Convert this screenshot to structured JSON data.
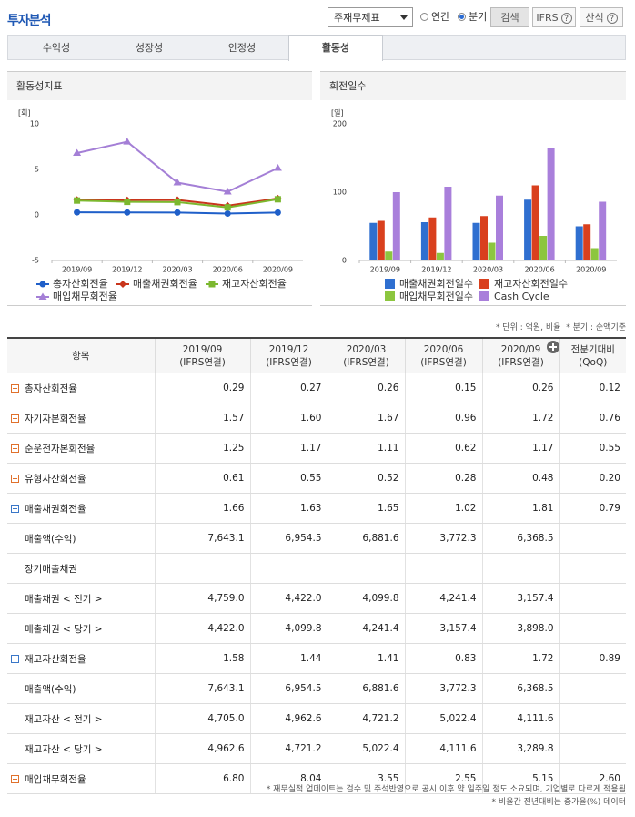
{
  "header": {
    "title": "투자분석",
    "select": "주재무제표",
    "radio_annual": "연간",
    "radio_quarter": "분기",
    "search": "검색",
    "ifrs": "IFRS",
    "formula": "산식"
  },
  "tabs": {
    "items": [
      "수익성",
      "성장성",
      "안정성",
      "활동성"
    ],
    "active": 3
  },
  "chart_data": [
    {
      "type": "line",
      "title": "활동성지표",
      "unit": "[회]",
      "categories": [
        "2019/09",
        "2019/12",
        "2020/03",
        "2020/06",
        "2020/09"
      ],
      "ylim": [
        -5,
        10
      ],
      "yticks": [
        -5,
        0,
        5,
        10
      ],
      "grid": false,
      "series": [
        {
          "name": "총자산회전율",
          "color": "#1f5fc9",
          "marker": "circle",
          "values": [
            0.29,
            0.27,
            0.26,
            0.15,
            0.26
          ]
        },
        {
          "name": "매출채권회전율",
          "color": "#c9351c",
          "marker": "diamond",
          "values": [
            1.66,
            1.63,
            1.65,
            1.02,
            1.81
          ]
        },
        {
          "name": "재고자산회전율",
          "color": "#7cb82f",
          "marker": "square",
          "values": [
            1.58,
            1.44,
            1.41,
            0.83,
            1.72
          ]
        },
        {
          "name": "매입채무회전율",
          "color": "#a47fd6",
          "marker": "triangle",
          "values": [
            6.8,
            8.04,
            3.55,
            2.55,
            5.15
          ]
        }
      ]
    },
    {
      "type": "bar",
      "title": "회전일수",
      "unit": "[일]",
      "categories": [
        "2019/09",
        "2019/12",
        "2020/03",
        "2020/06",
        "2020/09"
      ],
      "ylim": [
        0,
        200
      ],
      "yticks": [
        0,
        100,
        200
      ],
      "grid": false,
      "series": [
        {
          "name": "매출채권회전일수",
          "color": "#2f6fd0",
          "values": [
            55,
            56,
            55,
            89,
            50
          ]
        },
        {
          "name": "재고자산회전일수",
          "color": "#d9401e",
          "values": [
            58,
            63,
            65,
            110,
            53
          ]
        },
        {
          "name": "매입채무회전일수",
          "color": "#8cc63f",
          "values": [
            13,
            11,
            26,
            36,
            18
          ]
        },
        {
          "name": "Cash Cycle",
          "color": "#a97fdb",
          "values": [
            100,
            108,
            95,
            164,
            86
          ]
        }
      ]
    }
  ],
  "notes": {
    "unit": "* 단위 : 억원, 비율",
    "basis": "* 분기 : 순액기준"
  },
  "table": {
    "columns": [
      [
        "항목"
      ],
      [
        "2019/09",
        "(IFRS연결)"
      ],
      [
        "2019/12",
        "(IFRS연결)"
      ],
      [
        "2020/03",
        "(IFRS연결)"
      ],
      [
        "2020/06",
        "(IFRS연결)"
      ],
      [
        "2020/09",
        "(IFRS연결)"
      ],
      [
        "전분기대비",
        "(QoQ)"
      ]
    ],
    "rows": [
      {
        "label": "총자산회전율",
        "icon": "plus",
        "cells": [
          "0.29",
          "0.27",
          "0.26",
          "0.15",
          "0.26",
          "0.12"
        ]
      },
      {
        "label": "자기자본회전율",
        "icon": "plus",
        "cells": [
          "1.57",
          "1.60",
          "1.67",
          "0.96",
          "1.72",
          "0.76"
        ]
      },
      {
        "label": "순운전자본회전율",
        "icon": "plus",
        "cells": [
          "1.25",
          "1.17",
          "1.11",
          "0.62",
          "1.17",
          "0.55"
        ]
      },
      {
        "label": "유형자산회전율",
        "icon": "plus",
        "cells": [
          "0.61",
          "0.55",
          "0.52",
          "0.28",
          "0.48",
          "0.20"
        ]
      },
      {
        "label": "매출채권회전율",
        "icon": "minus",
        "cells": [
          "1.66",
          "1.63",
          "1.65",
          "1.02",
          "1.81",
          "0.79"
        ]
      },
      {
        "label": "매출액(수익)",
        "cells": [
          "7,643.1",
          "6,954.5",
          "6,881.6",
          "3,772.3",
          "6,368.5",
          null
        ]
      },
      {
        "label": "장기매출채권",
        "cells": [
          null,
          null,
          null,
          null,
          null,
          null
        ]
      },
      {
        "label": "매출채권 < 전기 >",
        "cells": [
          "4,759.0",
          "4,422.0",
          "4,099.8",
          "4,241.4",
          "3,157.4",
          null
        ]
      },
      {
        "label": "매출채권 < 당기 >",
        "cells": [
          "4,422.0",
          "4,099.8",
          "4,241.4",
          "3,157.4",
          "3,898.0",
          null
        ]
      },
      {
        "label": "재고자산회전율",
        "icon": "minus",
        "cells": [
          "1.58",
          "1.44",
          "1.41",
          "0.83",
          "1.72",
          "0.89"
        ]
      },
      {
        "label": "매출액(수익)",
        "cells": [
          "7,643.1",
          "6,954.5",
          "6,881.6",
          "3,772.3",
          "6,368.5",
          null
        ]
      },
      {
        "label": "재고자산 < 전기 >",
        "cells": [
          "4,705.0",
          "4,962.6",
          "4,721.2",
          "5,022.4",
          "4,111.6",
          null
        ]
      },
      {
        "label": "재고자산 < 당기 >",
        "cells": [
          "4,962.6",
          "4,721.2",
          "5,022.4",
          "4,111.6",
          "3,289.8",
          null
        ]
      },
      {
        "label": "매입채무회전율",
        "icon": "plus",
        "cells": [
          "6.80",
          "8.04",
          "3.55",
          "2.55",
          "5.15",
          "2.60"
        ]
      }
    ]
  },
  "footnotes": [
    "* 재무실적 업데이트는 검수 및 주석반영으로 공시 이후 약 일주일 정도 소요되며, 기업별로 다르게 적용됨",
    "* 비율간 전년대비는 증가율(%) 데이터"
  ]
}
